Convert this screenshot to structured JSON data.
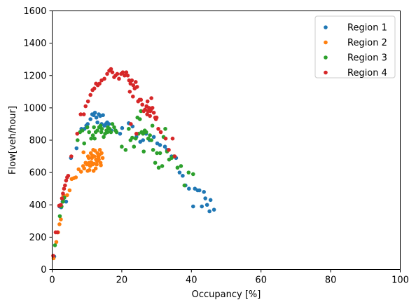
{
  "chart_data": {
    "type": "scatter",
    "title": "",
    "xlabel": "Occupancy [%]",
    "ylabel": "Flow[veh/hour]",
    "xlim": [
      0,
      100
    ],
    "ylim": [
      0,
      1600
    ],
    "xticks": [
      0,
      20,
      40,
      60,
      80,
      100
    ],
    "yticks": [
      0,
      200,
      400,
      600,
      800,
      1000,
      1200,
      1400,
      1600
    ],
    "grid": false,
    "legend_position": "top-right",
    "series": [
      {
        "name": "Region 1",
        "color": "#1f77b4",
        "points": [
          [
            0.6,
            80
          ],
          [
            2.1,
            390
          ],
          [
            2.6,
            385
          ],
          [
            3.0,
            420
          ],
          [
            4.0,
            420
          ],
          [
            5.4,
            690
          ],
          [
            7.0,
            750
          ],
          [
            8.4,
            870
          ],
          [
            9.3,
            870
          ],
          [
            9.8,
            890
          ],
          [
            10.2,
            900
          ],
          [
            11.0,
            930
          ],
          [
            11.5,
            960
          ],
          [
            11.9,
            955
          ],
          [
            12.3,
            970
          ],
          [
            12.7,
            940
          ],
          [
            13.0,
            910
          ],
          [
            13.4,
            960
          ],
          [
            13.8,
            950
          ],
          [
            14.2,
            900
          ],
          [
            14.6,
            955
          ],
          [
            15.0,
            890
          ],
          [
            15.4,
            900
          ],
          [
            15.8,
            910
          ],
          [
            16.3,
            900
          ],
          [
            17.0,
            860
          ],
          [
            18.2,
            860
          ],
          [
            19.5,
            840
          ],
          [
            20.1,
            875
          ],
          [
            22.0,
            905
          ],
          [
            23.1,
            885
          ],
          [
            24.2,
            820
          ],
          [
            25.3,
            790
          ],
          [
            26.1,
            800
          ],
          [
            27.0,
            840
          ],
          [
            28.0,
            800
          ],
          [
            29.2,
            820
          ],
          [
            30.2,
            780
          ],
          [
            31.0,
            770
          ],
          [
            32.4,
            760
          ],
          [
            33.0,
            740
          ],
          [
            34.3,
            700
          ],
          [
            35.6,
            690
          ],
          [
            36.6,
            600
          ],
          [
            37.5,
            580
          ],
          [
            38.3,
            520
          ],
          [
            39.3,
            500
          ],
          [
            40.5,
            390
          ],
          [
            41.0,
            500
          ],
          [
            41.8,
            490
          ],
          [
            42.3,
            490
          ],
          [
            43.0,
            390
          ],
          [
            43.6,
            480
          ],
          [
            44.0,
            440
          ],
          [
            44.5,
            400
          ],
          [
            45.2,
            360
          ],
          [
            45.5,
            430
          ],
          [
            46.5,
            370
          ]
        ]
      },
      {
        "name": "Region 2",
        "color": "#ff7f0e",
        "points": [
          [
            0.4,
            70
          ],
          [
            1.2,
            170
          ],
          [
            1.7,
            230
          ],
          [
            2.1,
            280
          ],
          [
            2.5,
            310
          ],
          [
            3.2,
            460
          ],
          [
            4.3,
            460
          ],
          [
            5.0,
            490
          ],
          [
            5.6,
            560
          ],
          [
            6.2,
            565
          ],
          [
            6.8,
            570
          ],
          [
            7.6,
            620
          ],
          [
            8.3,
            605
          ],
          [
            8.9,
            640
          ],
          [
            9.2,
            625
          ],
          [
            9.6,
            660
          ],
          [
            10.0,
            650
          ],
          [
            10.3,
            700
          ],
          [
            10.6,
            660
          ],
          [
            10.9,
            640
          ],
          [
            11.1,
            720
          ],
          [
            11.4,
            690
          ],
          [
            11.6,
            650
          ],
          [
            11.9,
            610
          ],
          [
            12.1,
            700
          ],
          [
            12.3,
            735
          ],
          [
            12.6,
            680
          ],
          [
            12.8,
            650
          ],
          [
            13.0,
            720
          ],
          [
            13.2,
            700
          ],
          [
            13.4,
            680
          ],
          [
            13.6,
            710
          ],
          [
            13.9,
            660
          ],
          [
            14.2,
            720
          ],
          [
            14.5,
            690
          ],
          [
            9.0,
            725
          ],
          [
            10.7,
            615
          ],
          [
            11.8,
            740
          ],
          [
            12.5,
            625
          ],
          [
            13.7,
            740
          ],
          [
            14.0,
            645
          ],
          [
            10.2,
            610
          ],
          [
            11.2,
            665
          ],
          [
            12.9,
            670
          ],
          [
            12.0,
            655
          ],
          [
            13.3,
            695
          ],
          [
            11.5,
            705
          ],
          [
            10.5,
            690
          ]
        ]
      },
      {
        "name": "Region 3",
        "color": "#2ca02c",
        "points": [
          [
            0.8,
            150
          ],
          [
            2.2,
            330
          ],
          [
            2.7,
            390
          ],
          [
            3.1,
            420
          ],
          [
            3.3,
            440
          ],
          [
            3.5,
            445
          ],
          [
            7.3,
            800
          ],
          [
            8.0,
            850
          ],
          [
            8.7,
            860
          ],
          [
            9.2,
            780
          ],
          [
            10.1,
            880
          ],
          [
            10.6,
            850
          ],
          [
            11.2,
            810
          ],
          [
            11.7,
            830
          ],
          [
            12.0,
            880
          ],
          [
            12.5,
            850
          ],
          [
            13.0,
            860
          ],
          [
            13.5,
            880
          ],
          [
            13.9,
            890
          ],
          [
            14.3,
            870
          ],
          [
            14.8,
            820
          ],
          [
            15.2,
            840
          ],
          [
            15.6,
            860
          ],
          [
            16.0,
            880
          ],
          [
            16.5,
            870
          ],
          [
            16.9,
            850
          ],
          [
            17.3,
            900
          ],
          [
            17.8,
            880
          ],
          [
            18.2,
            860
          ],
          [
            20.0,
            760
          ],
          [
            21.1,
            740
          ],
          [
            22.5,
            800
          ],
          [
            23.0,
            815
          ],
          [
            23.5,
            760
          ],
          [
            24.0,
            810
          ],
          [
            24.5,
            940
          ],
          [
            25.2,
            930
          ],
          [
            25.7,
            850
          ],
          [
            26.1,
            840
          ],
          [
            26.6,
            860
          ],
          [
            27.0,
            850
          ],
          [
            27.6,
            810
          ],
          [
            28.1,
            830
          ],
          [
            28.5,
            800
          ],
          [
            29.0,
            740
          ],
          [
            29.6,
            660
          ],
          [
            30.1,
            720
          ],
          [
            30.6,
            630
          ],
          [
            31.0,
            720
          ],
          [
            31.6,
            640
          ],
          [
            32.0,
            820
          ],
          [
            32.5,
            870
          ],
          [
            33.0,
            730
          ],
          [
            33.6,
            680
          ],
          [
            34.3,
            690
          ],
          [
            35.0,
            700
          ],
          [
            36.0,
            630
          ],
          [
            37.0,
            640
          ],
          [
            38.0,
            520
          ],
          [
            39.2,
            600
          ],
          [
            40.5,
            590
          ],
          [
            26.3,
            730
          ],
          [
            25.5,
            980
          ],
          [
            28.8,
            890
          ],
          [
            24.8,
            840
          ],
          [
            22.0,
            870
          ],
          [
            18.5,
            850
          ],
          [
            14.1,
            850
          ],
          [
            12.2,
            810
          ],
          [
            15.9,
            850
          ]
        ]
      },
      {
        "name": "Region 4",
        "color": "#d62728",
        "points": [
          [
            0.3,
            85
          ],
          [
            1.0,
            230
          ],
          [
            1.5,
            230
          ],
          [
            2.0,
            395
          ],
          [
            2.5,
            400
          ],
          [
            2.8,
            440
          ],
          [
            3.1,
            470
          ],
          [
            3.4,
            500
          ],
          [
            3.7,
            520
          ],
          [
            4.0,
            550
          ],
          [
            4.3,
            570
          ],
          [
            4.6,
            580
          ],
          [
            5.5,
            700
          ],
          [
            7.2,
            840
          ],
          [
            8.2,
            960
          ],
          [
            9.1,
            960
          ],
          [
            9.6,
            1010
          ],
          [
            10.3,
            1040
          ],
          [
            11.0,
            1080
          ],
          [
            11.6,
            1110
          ],
          [
            12.1,
            1120
          ],
          [
            12.6,
            1150
          ],
          [
            13.1,
            1140
          ],
          [
            13.6,
            1150
          ],
          [
            14.2,
            1170
          ],
          [
            15.0,
            1180
          ],
          [
            15.8,
            1210
          ],
          [
            16.4,
            1230
          ],
          [
            16.9,
            1240
          ],
          [
            17.3,
            1220
          ],
          [
            17.8,
            1190
          ],
          [
            18.2,
            1200
          ],
          [
            18.7,
            1210
          ],
          [
            19.2,
            1180
          ],
          [
            19.8,
            1210
          ],
          [
            20.3,
            1220
          ],
          [
            20.8,
            1200
          ],
          [
            21.3,
            1220
          ],
          [
            21.7,
            1200
          ],
          [
            22.1,
            1170
          ],
          [
            22.5,
            1150
          ],
          [
            22.9,
            1170
          ],
          [
            23.3,
            1140
          ],
          [
            23.7,
            1120
          ],
          [
            24.0,
            1160
          ],
          [
            24.4,
            1130
          ],
          [
            22.3,
            1100
          ],
          [
            23.2,
            1070
          ],
          [
            24.7,
            1040
          ],
          [
            25.1,
            1050
          ],
          [
            25.5,
            1050
          ],
          [
            25.9,
            1020
          ],
          [
            26.3,
            980
          ],
          [
            26.7,
            990
          ],
          [
            27.1,
            1010
          ],
          [
            27.4,
            1040
          ],
          [
            27.8,
            1000
          ],
          [
            28.2,
            980
          ],
          [
            28.5,
            1060
          ],
          [
            28.8,
            1000
          ],
          [
            29.2,
            970
          ],
          [
            29.6,
            940
          ],
          [
            30.0,
            940
          ],
          [
            30.5,
            870
          ],
          [
            31.2,
            850
          ],
          [
            32.6,
            810
          ],
          [
            33.5,
            740
          ],
          [
            34.6,
            810
          ],
          [
            35.2,
            700
          ],
          [
            22.6,
            900
          ],
          [
            24.2,
            840
          ],
          [
            27.3,
            960
          ],
          [
            28.1,
            950
          ],
          [
            29.8,
            930
          ],
          [
            27.5,
            980
          ],
          [
            28.4,
            990
          ]
        ]
      }
    ]
  }
}
